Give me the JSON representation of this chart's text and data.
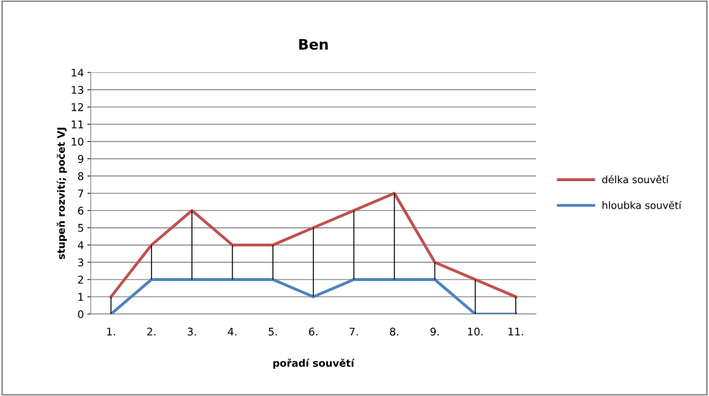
{
  "chart_data": {
    "type": "line",
    "title": "Ben",
    "xlabel": "pořadí souvětí",
    "ylabel": "stupeň rozvití; počet VJ",
    "categories": [
      "1.",
      "2.",
      "3.",
      "4.",
      "5.",
      "6.",
      "7.",
      "8.",
      "9.",
      "10.",
      "11."
    ],
    "series": [
      {
        "name": "délka souvětí",
        "color": "#c0504d",
        "values": [
          1,
          4,
          6,
          4,
          4,
          5,
          6,
          7,
          3,
          2,
          1
        ]
      },
      {
        "name": "hloubka souvětí",
        "color": "#4f81bd",
        "values": [
          0,
          2,
          2,
          2,
          2,
          1,
          2,
          2,
          2,
          0,
          0
        ],
        "errors": [
          [
            0,
            1
          ],
          [
            2,
            4
          ],
          [
            2,
            6
          ],
          [
            2,
            4
          ],
          [
            2,
            4
          ],
          [
            1,
            5
          ],
          [
            2,
            6
          ],
          [
            2,
            7
          ],
          [
            2,
            3
          ],
          [
            0,
            2
          ],
          [
            0,
            1
          ]
        ]
      }
    ],
    "ylim": [
      0,
      14
    ],
    "yticks": [
      0,
      1,
      2,
      3,
      4,
      5,
      6,
      7,
      8,
      9,
      10,
      11,
      12,
      13,
      14
    ],
    "grid": "y",
    "legend": "right",
    "marker": "none",
    "line_style": "solid"
  }
}
